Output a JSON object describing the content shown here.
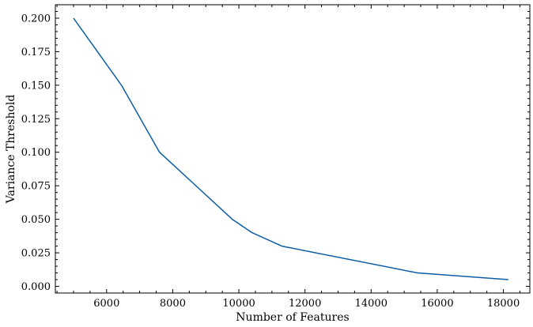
{
  "chart_data": {
    "type": "line",
    "title": "",
    "xlabel": "Number of Features",
    "ylabel": "Variance Threshold",
    "xlim": [
      4450,
      18800
    ],
    "ylim": [
      -0.005,
      0.21
    ],
    "xticks": [
      6000,
      8000,
      10000,
      12000,
      14000,
      16000,
      18000
    ],
    "xtick_labels": [
      "6000",
      "8000",
      "10000",
      "12000",
      "14000",
      "16000",
      "18000"
    ],
    "yticks": [
      0.0,
      0.025,
      0.05,
      0.075,
      0.1,
      0.125,
      0.15,
      0.175,
      0.2
    ],
    "ytick_labels": [
      "0.000",
      "0.025",
      "0.050",
      "0.075",
      "0.100",
      "0.125",
      "0.150",
      "0.175",
      "0.200"
    ],
    "grid": false,
    "series": [
      {
        "color": "#0c5da5",
        "x": [
          5000,
          6450,
          7600,
          9800,
          10400,
          11300,
          15400,
          18150
        ],
        "y": [
          0.2,
          0.15,
          0.1,
          0.05,
          0.04,
          0.03,
          0.01,
          0.005
        ]
      }
    ]
  }
}
